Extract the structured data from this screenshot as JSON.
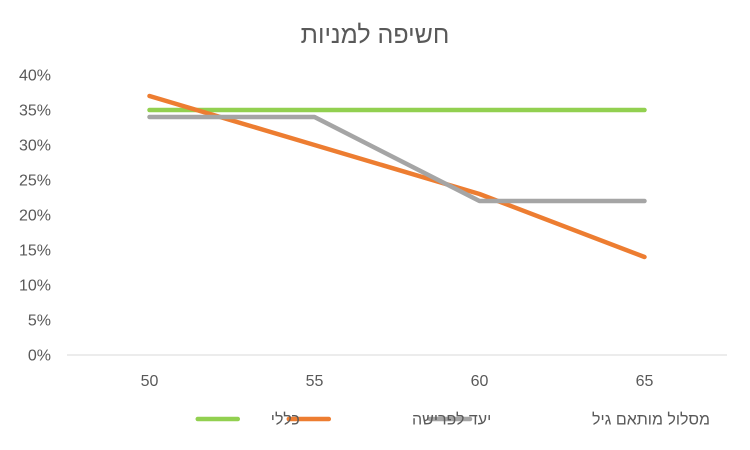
{
  "chart_data": {
    "type": "line",
    "title": "חשיפה למניות",
    "xlabel": "",
    "ylabel": "",
    "x": [
      50,
      55,
      60,
      65
    ],
    "ylim": [
      0,
      0.4
    ],
    "y_ticks": [
      "0%",
      "5%",
      "10%",
      "15%",
      "20%",
      "25%",
      "30%",
      "35%",
      "40%"
    ],
    "y_tick_values": [
      0,
      0.05,
      0.1,
      0.15,
      0.2,
      0.25,
      0.3,
      0.35,
      0.4
    ],
    "x_ticks": [
      "50",
      "55",
      "60",
      "65"
    ],
    "grid": false,
    "legend_position": "bottom",
    "series": [
      {
        "name": "כללי",
        "color": "#92D050",
        "values": [
          0.35,
          0.35,
          0.35,
          0.35
        ]
      },
      {
        "name": "יעד לפרישה",
        "color": "#ED7D31",
        "values": [
          0.37,
          0.3,
          0.23,
          0.14
        ]
      },
      {
        "name": "מסלול מותאם גיל",
        "color": "#A5A5A5",
        "values": [
          0.34,
          0.34,
          0.22,
          0.22
        ]
      }
    ]
  }
}
